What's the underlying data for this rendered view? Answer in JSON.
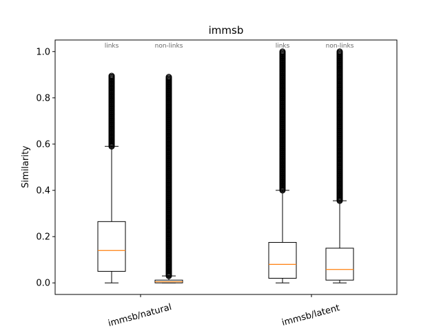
{
  "chart_data": {
    "type": "boxplot",
    "title": "immsb",
    "xlabel": "",
    "ylabel": "Similarity",
    "ylim": [
      -0.05,
      1.05
    ],
    "yticks": [
      0.0,
      0.2,
      0.4,
      0.6,
      0.8,
      1.0
    ],
    "ytick_labels": [
      "0.0",
      "0.2",
      "0.4",
      "0.6",
      "0.8",
      "1.0"
    ],
    "grid": false,
    "colors": {
      "box": "#000000",
      "median": "#ff7f0e",
      "frame": "#000000",
      "annotation": "#666666"
    },
    "categories": [
      "immsb/natural",
      "immsb/latent"
    ],
    "boxes": [
      {
        "label": "links",
        "category": "immsb/natural",
        "position": 1,
        "whisker_low": 0.0,
        "q1": 0.05,
        "median": 0.14,
        "q3": 0.265,
        "whisker_high": 0.59,
        "flier_low": 0.59,
        "flier_high": 0.895
      },
      {
        "label": "non-links",
        "category": "immsb/natural",
        "position": 2,
        "whisker_low": 0.0,
        "q1": 0.0,
        "median": 0.005,
        "q3": 0.012,
        "whisker_high": 0.03,
        "flier_low": 0.03,
        "flier_high": 0.89
      },
      {
        "label": "links",
        "category": "immsb/latent",
        "position": 3,
        "whisker_low": 0.0,
        "q1": 0.02,
        "median": 0.08,
        "q3": 0.175,
        "whisker_high": 0.4,
        "flier_low": 0.4,
        "flier_high": 1.0
      },
      {
        "label": "non-links",
        "category": "immsb/latent",
        "position": 4,
        "whisker_low": 0.0,
        "q1": 0.012,
        "median": 0.058,
        "q3": 0.15,
        "whisker_high": 0.355,
        "flier_low": 0.355,
        "flier_high": 1.0
      }
    ]
  }
}
